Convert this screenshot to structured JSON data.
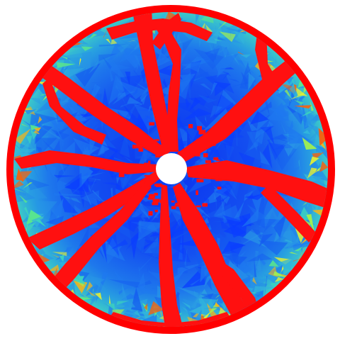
{
  "figure": {
    "background": "#ffffff",
    "disk_outer_color": "#ff0000",
    "field_palette": [
      "#0a3cff",
      "#145af0",
      "#1e78f0",
      "#2896e6",
      "#32b4dc",
      "#3cd2be",
      "#5ae68c",
      "#a0f050",
      "#e6f032",
      "#f0b41e",
      "#f06414"
    ],
    "crack_color": "#ff1010",
    "center_hole_color": "#ffffff",
    "crack_count": 8
  }
}
